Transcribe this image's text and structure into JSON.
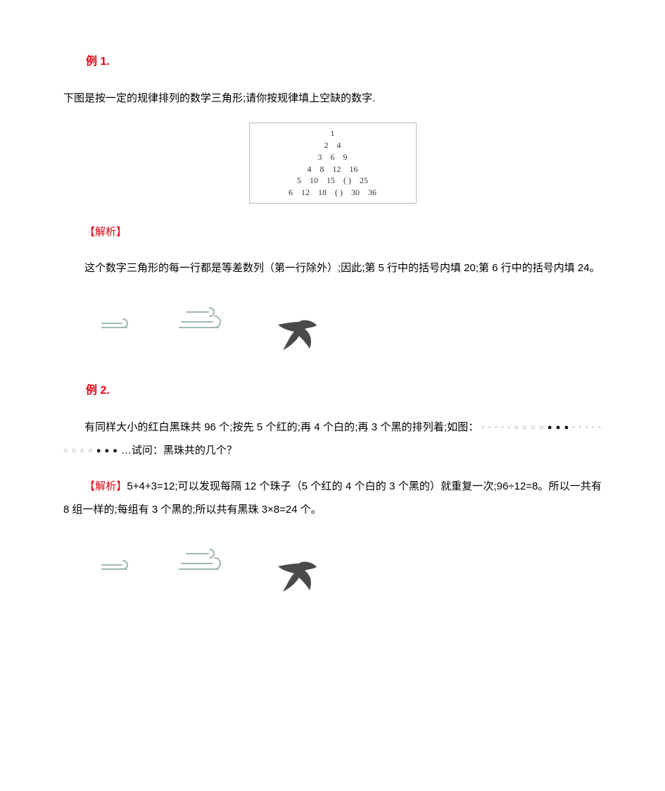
{
  "example1": {
    "title": "例 1.",
    "title_color": "#e60012",
    "question": "下图是按一定的规律排列的数学三角形;请你按规律填上空缺的数字.",
    "triangle": {
      "border_color": "#bbbbbb",
      "text_color": "#333333",
      "rows": [
        [
          "1"
        ],
        [
          "2",
          "4"
        ],
        [
          "3",
          "6",
          "9"
        ],
        [
          "4",
          "8",
          "12",
          "16"
        ],
        [
          "5",
          "10",
          "15",
          "(   )",
          "25"
        ],
        [
          "6",
          "12",
          "18",
          "(   )",
          "30",
          "36"
        ]
      ]
    },
    "solution_label": "【解析】",
    "solution_label_color": "#e60012",
    "solution_text": "这个数字三角形的每一行都是等差数列（第一行除外）;因此;第 5 行中的括号内填 20;第 6 行中的括号内填  24。"
  },
  "example2": {
    "title": "例 2.",
    "title_color": "#e60012",
    "question_prefix": "有同样大小的红白黑珠共 96 个;按先 5 个红的;再 4 个白的;再 3 个黑的排列着;如图：",
    "bead_pattern": {
      "first_group": [
        {
          "t": "r"
        },
        {
          "t": "r"
        },
        {
          "t": "r"
        },
        {
          "t": "r"
        },
        {
          "t": "r"
        },
        {
          "t": "w"
        },
        {
          "t": "w"
        },
        {
          "t": "w"
        },
        {
          "t": "w"
        },
        {
          "t": "b"
        },
        {
          "t": "b"
        },
        {
          "t": "b"
        }
      ],
      "repeat": 2,
      "trailing": "…",
      "red_glyph": "◦",
      "white_glyph": "○",
      "black_glyph": "●",
      "red_color": "#999999",
      "white_color": "#888888",
      "black_color": "#000000"
    },
    "question_suffix": "…试问：黑珠共的几个？",
    "solution_label": "【解析】",
    "solution_label_color": "#e60012",
    "solution_text": "5+4+3=12;可以发现每隔 12 个珠子（5 个红的 4 个白的 3 个黑的）就重复一次;96÷12=8。所以一共有 8 组一样的;每组有 3 个黑的;所以共有黑珠 3×8=24 个。"
  },
  "decoration": {
    "cloud_stroke": "#9fb8b2",
    "bird_fill": "#4a4a48"
  }
}
